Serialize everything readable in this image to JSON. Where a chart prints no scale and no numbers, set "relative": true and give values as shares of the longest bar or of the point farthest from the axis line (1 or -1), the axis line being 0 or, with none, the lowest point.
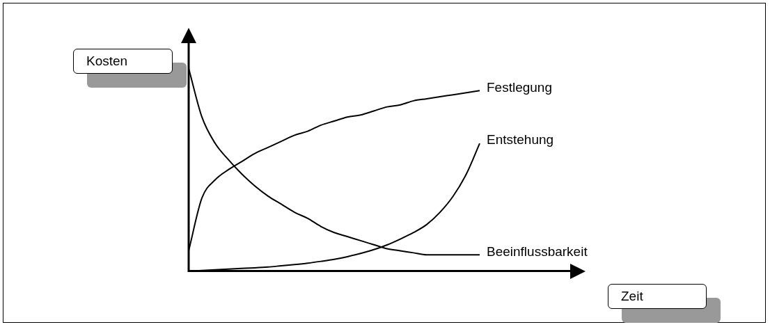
{
  "chart_data": {
    "type": "line",
    "relative": true,
    "xlabel": "Zeit",
    "ylabel": "Kosten",
    "grid": false,
    "legend": false,
    "marker": "none",
    "line_style": "solid",
    "categories": [
      null,
      null,
      null,
      null,
      null,
      null,
      null,
      null,
      null,
      null,
      null,
      null,
      null,
      null,
      null,
      null,
      null,
      null,
      null,
      null,
      null,
      null,
      null,
      null,
      null,
      null,
      null,
      null,
      null,
      null,
      null
    ],
    "series": [
      {
        "name": "Festlegung",
        "color": "#000000",
        "values": [
          0.1,
          0.36,
          0.45,
          0.5,
          0.54,
          0.58,
          0.61,
          0.64,
          0.67,
          0.69,
          0.72,
          0.74,
          0.76,
          0.77,
          0.79,
          0.81,
          0.82,
          0.84,
          0.85,
          0.86,
          0.87,
          0.88,
          0.89,
          null,
          null,
          null,
          null,
          null,
          null,
          null,
          null
        ]
      },
      {
        "name": "Entstehung",
        "color": "#000000",
        "values": [
          0,
          0.003,
          0.006,
          0.01,
          0.013,
          0.016,
          0.02,
          0.026,
          0.032,
          0.039,
          0.048,
          0.058,
          0.071,
          0.087,
          0.106,
          0.129,
          0.158,
          0.19,
          0.23,
          0.29,
          0.37,
          0.48,
          0.63,
          null,
          null,
          null,
          null,
          null,
          null,
          null,
          null
        ]
      },
      {
        "name": "Beeinflussbarkeit",
        "color": "#000000",
        "values": [
          1,
          0.76,
          0.63,
          0.55,
          0.48,
          0.42,
          0.37,
          0.33,
          0.29,
          0.26,
          0.22,
          0.19,
          0.17,
          0.15,
          0.13,
          0.11,
          0.1,
          0.09,
          0.08,
          0.08,
          0.08,
          0.08,
          0.08,
          null,
          null,
          null,
          null,
          null,
          null,
          null,
          null
        ]
      }
    ]
  }
}
